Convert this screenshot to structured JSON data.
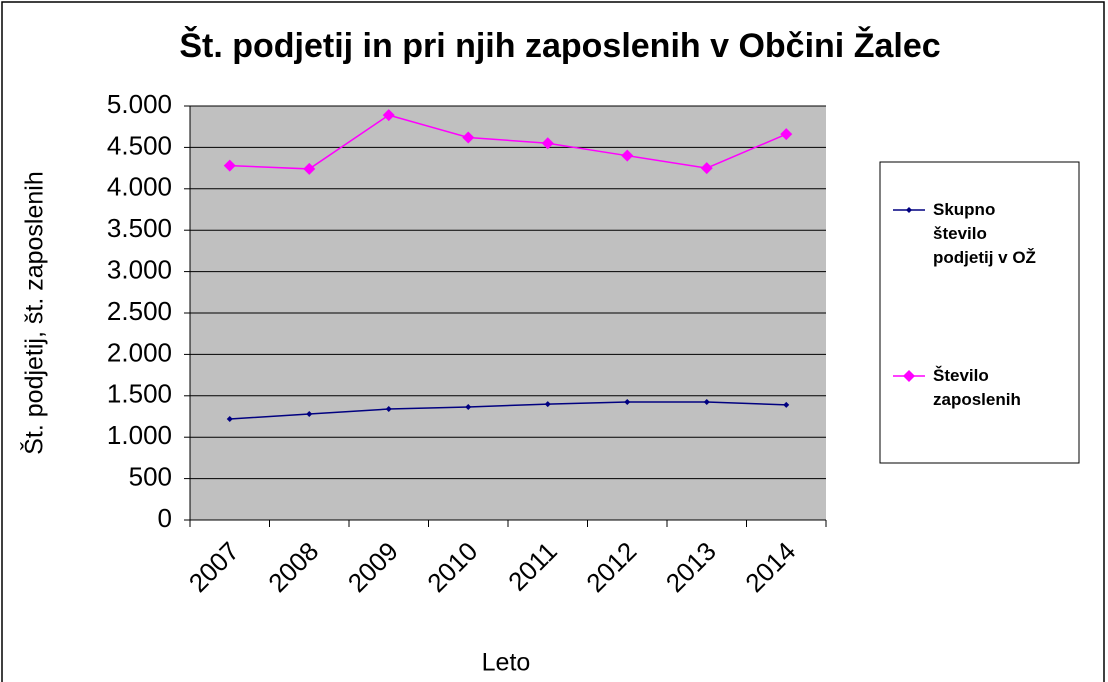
{
  "chart_data": {
    "type": "line",
    "title": "Št. podjetij in pri njih zaposlenih v Občini Žalec",
    "xlabel": "Leto",
    "ylabel": "Št. podjetij, št. zaposlenih",
    "categories": [
      "2007",
      "2008",
      "2009",
      "2010",
      "2011",
      "2012",
      "2013",
      "2014"
    ],
    "series": [
      {
        "name": "Skupno število podjetij v OŽ",
        "color": "#000080",
        "values": [
          1220,
          1280,
          1340,
          1365,
          1400,
          1425,
          1425,
          1390
        ]
      },
      {
        "name": "Število zaposlenih",
        "color": "#ff00ff",
        "values": [
          4280,
          4240,
          4890,
          4620,
          4550,
          4400,
          4250,
          4660
        ]
      }
    ],
    "ylim": [
      0,
      5000
    ],
    "yticks": [
      0,
      500,
      {
        "value": 1000,
        "label": "1.000"
      },
      {
        "value": 1500,
        "label": "1.500"
      },
      {
        "value": 2000,
        "label": "2.000"
      },
      {
        "value": 2500,
        "label": "2.500"
      },
      {
        "value": 3000,
        "label": "3.000"
      },
      {
        "value": 3500,
        "label": "3.500"
      },
      {
        "value": 4000,
        "label": "4.000"
      },
      {
        "value": 4500,
        "label": "4.500"
      },
      {
        "value": 5000,
        "label": "5.000"
      }
    ],
    "grid": true,
    "legend": "right"
  }
}
